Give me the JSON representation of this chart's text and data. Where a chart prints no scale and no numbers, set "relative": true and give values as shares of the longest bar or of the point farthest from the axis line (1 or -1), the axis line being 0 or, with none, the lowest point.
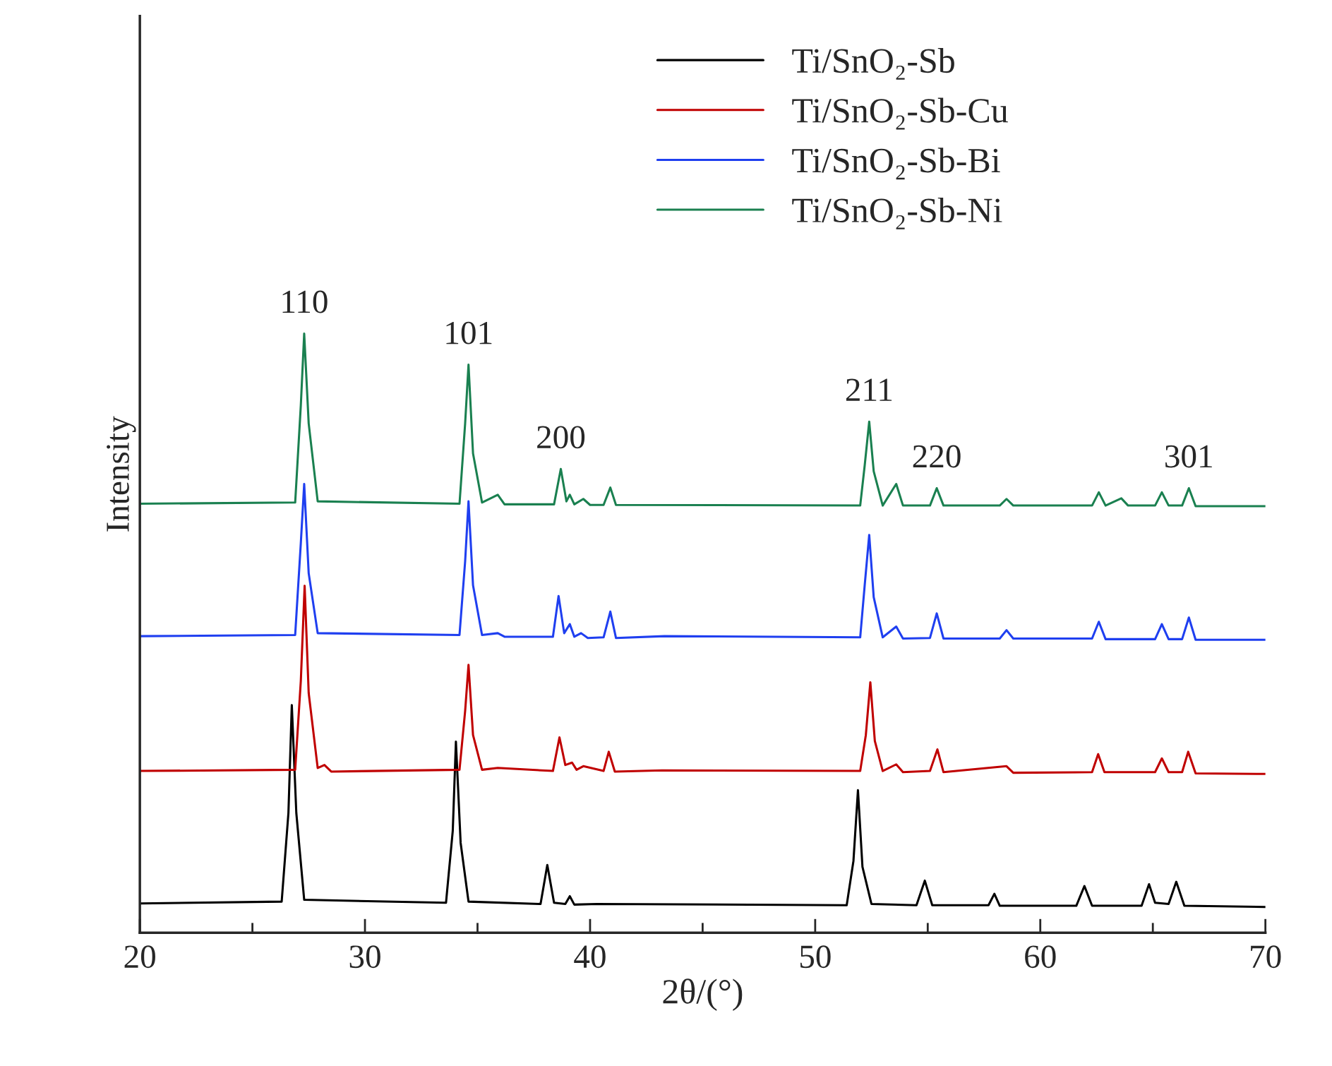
{
  "chart_data": {
    "type": "line",
    "relative": true,
    "xlabel": "2θ/(°)",
    "ylabel": "Intensity",
    "xlim": [
      20,
      70
    ],
    "xticks": [
      20,
      {
        "value": 25,
        "label": null
      },
      30,
      {
        "value": 35,
        "label": null
      },
      40,
      {
        "value": 45,
        "label": null
      },
      50,
      {
        "value": 55,
        "label": null
      },
      60,
      {
        "value": 65,
        "label": null
      },
      70
    ],
    "legend": "top right",
    "grid": false,
    "series": [
      {
        "name": "Ti/SnO₂-Sb",
        "color": "#000000",
        "x": [
          20,
          26.3,
          26.6,
          26.75,
          26.95,
          27.3,
          33.6,
          33.9,
          34.04,
          34.25,
          34.6,
          37.8,
          38.1,
          38.4,
          38.9,
          39.1,
          39.3,
          40.3,
          51.4,
          51.7,
          51.9,
          52.1,
          52.5,
          54.5,
          54.87,
          55.2,
          57.7,
          57.96,
          58.2,
          61.6,
          61.96,
          62.3,
          64.5,
          64.83,
          65.1,
          65.7,
          66.04,
          66.4,
          70
        ],
        "values": [
          0.049,
          0.052,
          0.2,
          0.38,
          0.2,
          0.055,
          0.05,
          0.17,
          0.319,
          0.15,
          0.052,
          0.048,
          0.113,
          0.05,
          0.048,
          0.061,
          0.047,
          0.048,
          0.046,
          0.12,
          0.238,
          0.11,
          0.048,
          0.046,
          0.087,
          0.046,
          0.046,
          0.065,
          0.045,
          0.045,
          0.078,
          0.045,
          0.045,
          0.081,
          0.05,
          0.048,
          0.085,
          0.045,
          0.043
        ]
      },
      {
        "name": "Ti/SnO₂-Sb-Cu",
        "color": "#c00000",
        "x": [
          20,
          26.9,
          27.15,
          27.32,
          27.5,
          27.9,
          28.2,
          28.5,
          34.2,
          34.45,
          34.6,
          34.8,
          35.2,
          35.9,
          38.35,
          38.64,
          38.9,
          39.2,
          39.4,
          39.7,
          40.6,
          40.83,
          41.1,
          43.2,
          52.0,
          52.25,
          52.45,
          52.65,
          53.0,
          53.6,
          53.9,
          55.1,
          55.43,
          55.7,
          58.5,
          58.8,
          62.3,
          62.57,
          62.85,
          65.1,
          65.4,
          65.7,
          66.3,
          66.57,
          66.9,
          70
        ],
        "values": [
          0.27,
          0.272,
          0.42,
          0.579,
          0.4,
          0.275,
          0.28,
          0.269,
          0.272,
          0.37,
          0.447,
          0.33,
          0.272,
          0.275,
          0.27,
          0.326,
          0.28,
          0.284,
          0.272,
          0.278,
          0.27,
          0.302,
          0.269,
          0.271,
          0.27,
          0.33,
          0.418,
          0.32,
          0.27,
          0.281,
          0.268,
          0.27,
          0.306,
          0.268,
          0.278,
          0.267,
          0.268,
          0.298,
          0.268,
          0.268,
          0.291,
          0.268,
          0.268,
          0.302,
          0.266,
          0.265
        ]
      },
      {
        "name": "Ti/SnO₂-Sb-Bi",
        "color": "#1f3ff0",
        "x": [
          20,
          26.9,
          27.15,
          27.3,
          27.5,
          27.9,
          34.2,
          34.45,
          34.6,
          34.8,
          35.2,
          35.9,
          36.2,
          38.35,
          38.6,
          38.85,
          39.1,
          39.3,
          39.6,
          39.9,
          40.6,
          40.9,
          41.15,
          43.3,
          52.0,
          52.2,
          52.4,
          52.6,
          53.0,
          53.6,
          53.9,
          55.1,
          55.4,
          55.7,
          58.2,
          58.5,
          58.8,
          62.3,
          62.6,
          62.9,
          65.1,
          65.4,
          65.7,
          66.3,
          66.6,
          66.9,
          70
        ],
        "values": [
          0.495,
          0.497,
          0.65,
          0.749,
          0.6,
          0.5,
          0.497,
          0.62,
          0.72,
          0.58,
          0.497,
          0.5,
          0.494,
          0.494,
          0.562,
          0.5,
          0.515,
          0.494,
          0.5,
          0.492,
          0.493,
          0.536,
          0.492,
          0.495,
          0.493,
          0.58,
          0.664,
          0.56,
          0.493,
          0.511,
          0.491,
          0.492,
          0.533,
          0.491,
          0.491,
          0.505,
          0.491,
          0.491,
          0.519,
          0.49,
          0.49,
          0.515,
          0.49,
          0.49,
          0.526,
          0.489,
          0.489
        ]
      },
      {
        "name": "Ti/SnO₂-Sb-Ni",
        "color": "#1a8050",
        "x": [
          20,
          26.9,
          27.15,
          27.3,
          27.5,
          27.9,
          34.2,
          34.45,
          34.6,
          34.8,
          35.2,
          35.9,
          36.2,
          38.4,
          38.7,
          38.95,
          39.1,
          39.3,
          39.7,
          40.0,
          40.6,
          40.9,
          41.15,
          52.0,
          52.2,
          52.4,
          52.6,
          53.0,
          53.6,
          53.9,
          55.1,
          55.4,
          55.7,
          58.2,
          58.5,
          58.8,
          62.3,
          62.6,
          62.9,
          63.6,
          63.9,
          65.1,
          65.4,
          65.7,
          66.3,
          66.6,
          66.9,
          70
        ],
        "values": [
          0.716,
          0.718,
          0.88,
          1.0,
          0.85,
          0.72,
          0.716,
          0.85,
          0.948,
          0.8,
          0.718,
          0.731,
          0.715,
          0.715,
          0.774,
          0.72,
          0.731,
          0.715,
          0.724,
          0.714,
          0.714,
          0.743,
          0.714,
          0.713,
          0.78,
          0.853,
          0.77,
          0.713,
          0.749,
          0.713,
          0.713,
          0.742,
          0.713,
          0.713,
          0.724,
          0.713,
          0.713,
          0.735,
          0.713,
          0.725,
          0.713,
          0.713,
          0.735,
          0.713,
          0.713,
          0.742,
          0.712,
          0.712
        ]
      }
    ],
    "annotations": [
      {
        "text": "110",
        "x": 27.3,
        "y": 1.0
      },
      {
        "text": "101",
        "x": 34.6,
        "y": 0.948
      },
      {
        "text": "200",
        "x": 38.7,
        "y": 0.774
      },
      {
        "text": "211",
        "x": 52.4,
        "y": 0.853
      },
      {
        "text": "220",
        "x": 55.4,
        "y": 0.742
      },
      {
        "text": "301",
        "x": 66.6,
        "y": 0.742
      }
    ]
  }
}
